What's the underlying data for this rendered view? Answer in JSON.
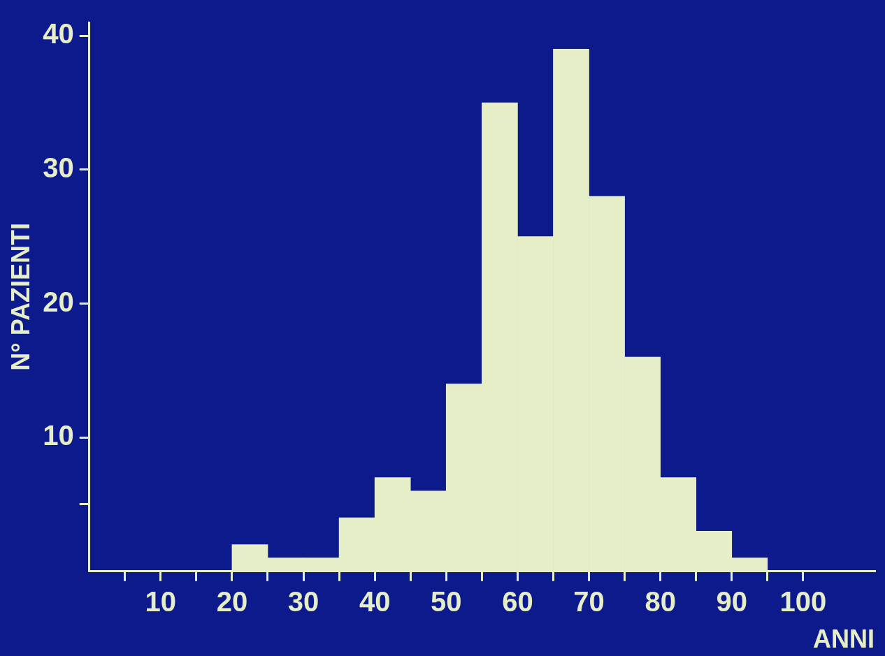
{
  "chart_data": {
    "type": "histogram",
    "xlabel": "ANNI",
    "ylabel": "N° PAZIENTI",
    "bins": [
      20,
      25,
      30,
      35,
      40,
      45,
      50,
      55,
      60,
      65,
      70,
      75,
      80,
      85,
      90,
      95
    ],
    "values": [
      2,
      1,
      1,
      4,
      7,
      6,
      14,
      35,
      25,
      39,
      28,
      16,
      7,
      3,
      1
    ],
    "color": "#e6eec8",
    "xlim": [
      0,
      110
    ],
    "xticks": [
      {
        "value": 5,
        "label": null
      },
      10,
      {
        "value": 15,
        "label": null
      },
      20,
      {
        "value": 25,
        "label": null
      },
      30,
      {
        "value": 35,
        "label": null
      },
      40,
      {
        "value": 45,
        "label": null
      },
      50,
      {
        "value": 55,
        "label": null
      },
      60,
      {
        "value": 65,
        "label": null
      },
      70,
      {
        "value": 75,
        "label": null
      },
      80,
      {
        "value": 85,
        "label": null
      },
      90,
      {
        "value": 95,
        "label": null
      },
      100
    ],
    "ylim": [
      0,
      41
    ],
    "yticks": [
      {
        "value": 5,
        "label": null
      },
      10,
      20,
      30,
      40
    ],
    "grid": false,
    "legend": false
  }
}
